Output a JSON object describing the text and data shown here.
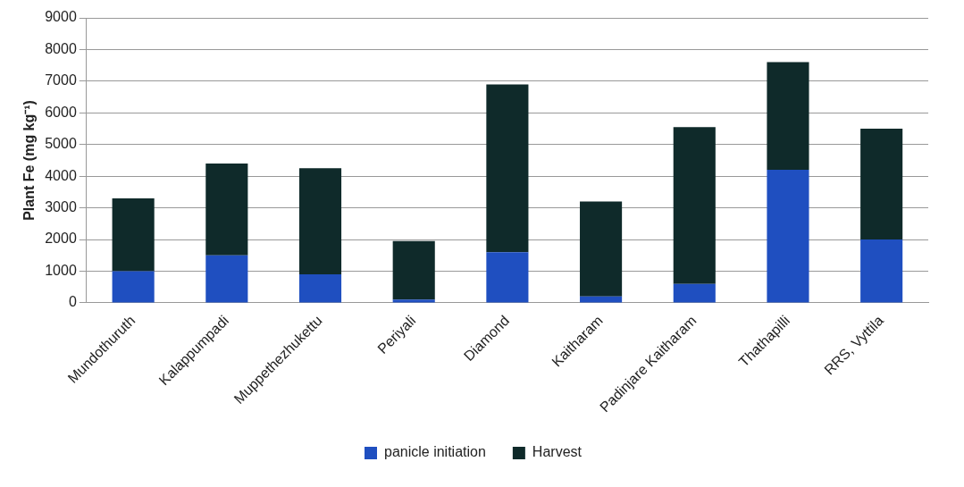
{
  "chart_data": {
    "type": "bar",
    "stacked": true,
    "ylabel": "Plant Fe (mg kg⁻¹)",
    "categories": [
      "Mundothuruth",
      "Kalappumpadi",
      "Muppethezhukettu",
      "Periyali",
      "Diamond",
      "Kaitharam",
      "Padinjare Kaitharam",
      "Thathapilli",
      "RRS, Vyttila"
    ],
    "series": [
      {
        "name": "panicle initiation",
        "color": "#1f4fc0",
        "values": [
          1000,
          1500,
          900,
          100,
          1600,
          200,
          600,
          4200,
          2000
        ]
      },
      {
        "name": "Harvest",
        "color": "#0f2a2a",
        "values": [
          2300,
          2900,
          3350,
          1850,
          5300,
          3000,
          4950,
          3400,
          3500
        ]
      }
    ],
    "ylim": [
      0,
      9000
    ],
    "yticks": [
      0,
      1000,
      2000,
      3000,
      4000,
      5000,
      6000,
      7000,
      8000,
      9000
    ],
    "grid": "y",
    "legend": "bottom"
  }
}
